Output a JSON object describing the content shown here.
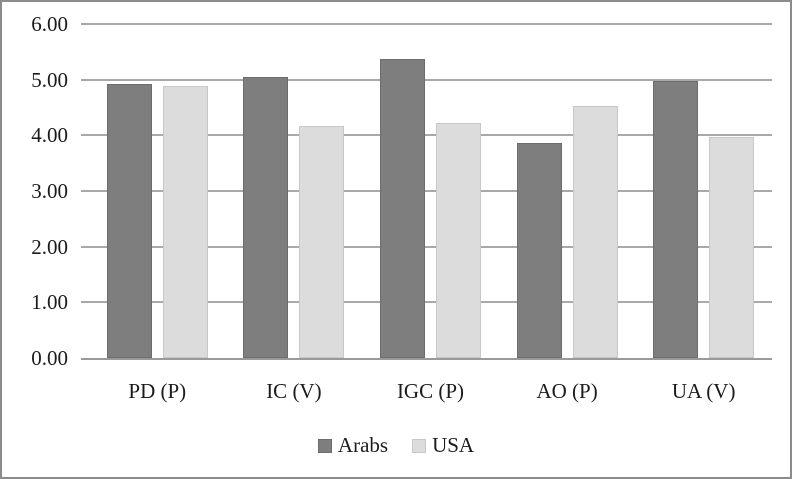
{
  "chart_data": {
    "type": "bar",
    "title": "",
    "categories": [
      "PD (P)",
      "IC (V)",
      "IGC (P)",
      "AO (P)",
      "UA (V)"
    ],
    "series": [
      {
        "name": "Arabs",
        "color": "#7e7e7e",
        "values": [
          4.92,
          5.05,
          5.38,
          3.87,
          4.97
        ]
      },
      {
        "name": "USA",
        "color": "#dcdcdc",
        "values": [
          4.88,
          4.17,
          4.23,
          4.52,
          3.97
        ]
      }
    ],
    "ylim": [
      0,
      6
    ],
    "yticks": [
      "0.00",
      "1.00",
      "2.00",
      "3.00",
      "4.00",
      "5.00",
      "6.00"
    ],
    "grid": true,
    "legend_position": "bottom",
    "colors": {
      "gridline": "#a9a9a9",
      "axis_line": "#9a9a9a",
      "text": "#1b1b1b",
      "border": "#8c8c8c",
      "background": "#ffffff"
    }
  }
}
